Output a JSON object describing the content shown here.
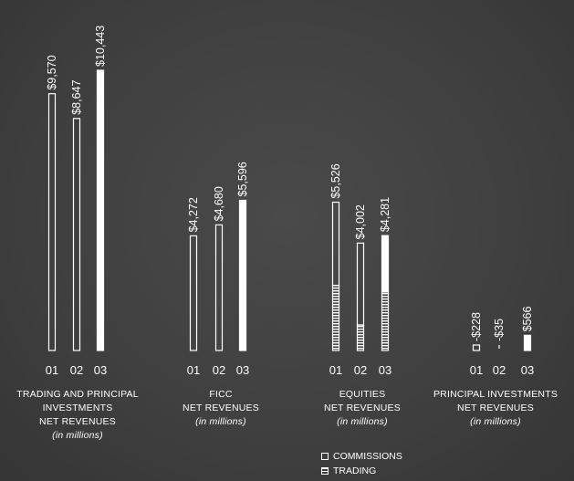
{
  "chart_data": [
    {
      "type": "bar",
      "categories": [
        "01",
        "02",
        "03"
      ],
      "values": [
        9570,
        8647,
        10443
      ],
      "value_labels": [
        "$9,570",
        "$8,647",
        "$10,443"
      ],
      "caption": [
        "TRADING AND PRINCIPAL",
        "INVESTMENTS",
        "NET REVENUES"
      ],
      "subcaption": "(in millions)"
    },
    {
      "type": "bar",
      "categories": [
        "01",
        "02",
        "03"
      ],
      "values": [
        4272,
        4680,
        5596
      ],
      "value_labels": [
        "$4,272",
        "$4,680",
        "$5,596"
      ],
      "caption": [
        "FICC",
        "NET REVENUES"
      ],
      "subcaption": "(in millions)"
    },
    {
      "type": "bar",
      "stacked": true,
      "categories": [
        "01",
        "02",
        "03"
      ],
      "values": [
        5526,
        4002,
        4281
      ],
      "value_labels": [
        "$5,526",
        "$4,002",
        "$4,281"
      ],
      "series": [
        {
          "name": "COMMISSIONS",
          "values": [
            3100,
            3050,
            2100
          ]
        },
        {
          "name": "TRADING",
          "values": [
            2426,
            952,
            2181
          ]
        }
      ],
      "caption": [
        "EQUITIES",
        "NET REVENUES"
      ],
      "subcaption": "(in millions)"
    },
    {
      "type": "bar",
      "categories": [
        "01",
        "02",
        "03"
      ],
      "values": [
        -228,
        -35,
        566
      ],
      "value_labels": [
        "-$228",
        "-$35",
        "$566"
      ],
      "caption": [
        "PRINCIPAL INVESTMENTS",
        "NET REVENUES"
      ],
      "subcaption": "(in millions)"
    }
  ],
  "legend": {
    "commissions": "COMMISSIONS",
    "trading": "TRADING"
  },
  "colors": {
    "bar_outline": "#ffffff",
    "bar_fill_latest": "#ffffff",
    "background": "#404040"
  }
}
